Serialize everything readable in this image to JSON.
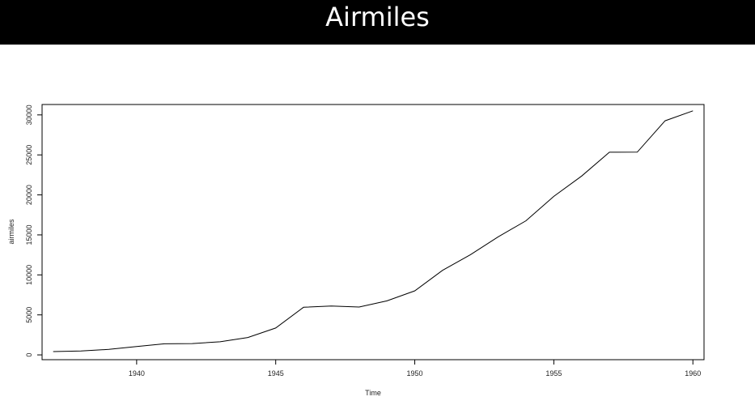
{
  "header": {
    "title": "Airmiles"
  },
  "chart_data": {
    "type": "line",
    "title": "",
    "xlabel": "Time",
    "ylabel": "airmiles",
    "xlim": [
      1936.6,
      1960.4
    ],
    "ylim": [
      -600,
      31300
    ],
    "x_ticks": [
      1940,
      1945,
      1950,
      1955,
      1960
    ],
    "x_tick_labels": [
      "1940",
      "1945",
      "1950",
      "1955",
      "1960"
    ],
    "y_ticks": [
      0,
      5000,
      10000,
      15000,
      20000,
      25000,
      30000
    ],
    "y_tick_labels": [
      "0",
      "5000",
      "10000",
      "15000",
      "20000",
      "25000",
      "30000"
    ],
    "grid": false,
    "line_color": "#000000",
    "series": [
      {
        "x": [
          1937,
          1938,
          1939,
          1940,
          1941,
          1942,
          1943,
          1944,
          1945,
          1946,
          1947,
          1948,
          1949,
          1950,
          1951,
          1952,
          1953,
          1954,
          1955,
          1956,
          1957,
          1958,
          1959,
          1960
        ],
        "values": [
          412,
          480,
          683,
          1052,
          1385,
          1418,
          1634,
          2178,
          3362,
          5948,
          6109,
          5981,
          6753,
          8003,
          10566,
          12528,
          14760,
          16769,
          19819,
          22362,
          25340,
          25343,
          29269,
          30514
        ]
      }
    ]
  }
}
